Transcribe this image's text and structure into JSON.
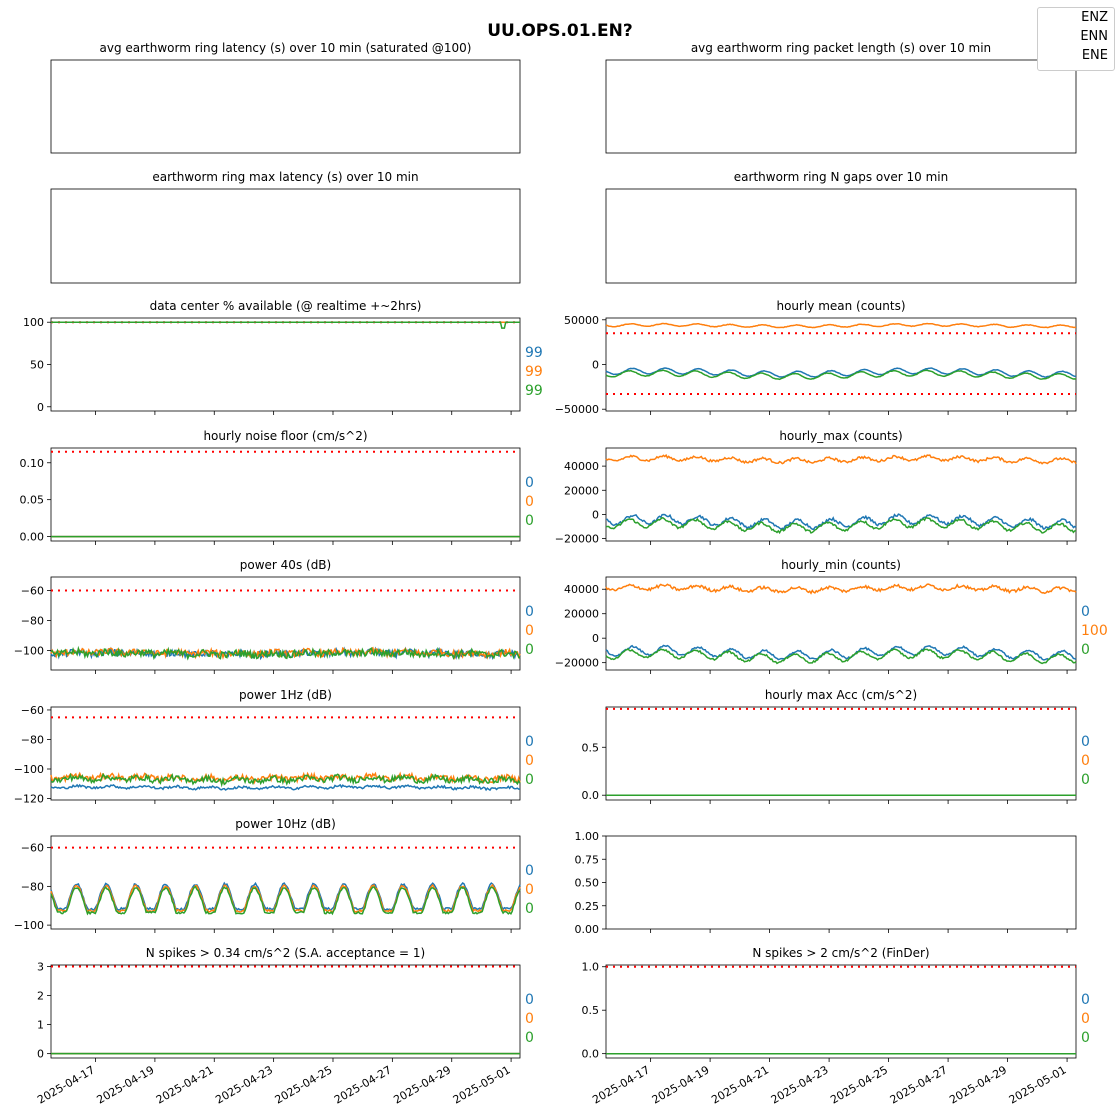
{
  "title": "UU.OPS.01.EN?",
  "legend": {
    "placement": "top-right",
    "entries": [
      "ENZ",
      "ENN",
      "ENE"
    ]
  },
  "colors": {
    "ENZ": "#1f77b4",
    "ENN": "#ff7f0e",
    "ENE": "#2ca02c",
    "threshold": "#ff0000"
  },
  "x_axis": {
    "type": "date",
    "range": [
      "2025-04-15",
      "2025-05-01"
    ],
    "tick_labels": [
      "2025-04-17",
      "2025-04-19",
      "2025-04-21",
      "2025-04-23",
      "2025-04-25",
      "2025-04-27",
      "2025-04-29",
      "2025-05-01"
    ]
  },
  "chart_data": [
    {
      "type": "line",
      "title": "avg earthworm ring latency (s)   over 10 min (saturated @100)",
      "empty": true,
      "ticks": [],
      "ylim": null,
      "stats": []
    },
    {
      "type": "line",
      "title": "avg earthworm ring packet length (s)   over 10 min",
      "empty": true,
      "ticks": [],
      "ylim": null,
      "stats": []
    },
    {
      "type": "line",
      "title": "earthworm ring max latency (s)   over 10 min",
      "empty": true,
      "ticks": [],
      "ylim": null,
      "stats": []
    },
    {
      "type": "line",
      "title": "earthworm ring N gaps   over 10 min",
      "empty": true,
      "ticks": [],
      "ylim": null,
      "stats": []
    },
    {
      "type": "line",
      "title": "data center % available (@ realtime +~2hrs)",
      "ylim": [
        -5,
        105
      ],
      "ticks": [
        {
          "v": 0,
          "label": "0"
        },
        {
          "v": 50,
          "label": "50"
        },
        {
          "v": 100,
          "label": "100"
        }
      ],
      "thresholds": [
        100
      ],
      "stats": [
        "99",
        "99",
        "99"
      ],
      "series": [
        {
          "channel": "ENZ",
          "base": 100
        },
        {
          "channel": "ENN",
          "base": 100
        },
        {
          "channel": "ENE",
          "base": 100,
          "dip": {
            "at": 0.965,
            "value": 93
          }
        }
      ]
    },
    {
      "type": "line",
      "title": "hourly mean (counts)",
      "ylim": [
        -52000,
        52000
      ],
      "ticks": [
        {
          "v": 50000,
          "label": "50000"
        },
        {
          "v": 0,
          "label": "0"
        },
        {
          "v": -50000,
          "label": "−50000"
        }
      ],
      "thresholds": [
        35000,
        -33000
      ],
      "stats": [],
      "series": [
        {
          "channel": "ENZ",
          "base": -9000,
          "amp": 4500,
          "noise": 300
        },
        {
          "channel": "ENN",
          "base": 43500,
          "amp": 2000,
          "noise": 300
        },
        {
          "channel": "ENE",
          "base": -11500,
          "amp": 4500,
          "noise": 300
        }
      ]
    },
    {
      "type": "line",
      "title": "hourly noise floor (cm/s^2)",
      "ylim": [
        -0.006,
        0.12
      ],
      "ticks": [
        {
          "v": 0.1,
          "label": "0.10"
        },
        {
          "v": 0.05,
          "label": "0.05"
        },
        {
          "v": 0,
          "label": "0.00"
        }
      ],
      "thresholds": [
        0.115
      ],
      "stats": [
        "0",
        "0",
        "0"
      ],
      "series": [
        {
          "channel": "ENZ",
          "base": 0
        },
        {
          "channel": "ENN",
          "base": 0
        },
        {
          "channel": "ENE",
          "base": 0
        }
      ]
    },
    {
      "type": "line",
      "title": "hourly_max (counts)",
      "ylim": [
        -22000,
        55000
      ],
      "ticks": [
        {
          "v": 40000,
          "label": "40000"
        },
        {
          "v": 20000,
          "label": "20000"
        },
        {
          "v": 0,
          "label": "0"
        },
        {
          "v": -20000,
          "label": "−20000"
        }
      ],
      "thresholds": [],
      "stats": [],
      "series": [
        {
          "channel": "ENZ",
          "base": -6000,
          "amp": 5000,
          "noise": 1200
        },
        {
          "channel": "ENN",
          "base": 45500,
          "amp": 2500,
          "noise": 1000
        },
        {
          "channel": "ENE",
          "base": -9000,
          "amp": 5000,
          "noise": 1000
        }
      ]
    },
    {
      "type": "line",
      "title": "power 40s (dB)",
      "ylim": [
        -113,
        -51
      ],
      "ticks": [
        {
          "v": -60,
          "label": "−60"
        },
        {
          "v": -80,
          "label": "−80"
        },
        {
          "v": -100,
          "label": "−100"
        }
      ],
      "thresholds": [
        -60
      ],
      "stats": [
        "0",
        "0",
        "0"
      ],
      "series": [
        {
          "channel": "ENZ",
          "base": -102,
          "amp": 1,
          "noise": 2.2
        },
        {
          "channel": "ENN",
          "base": -101.5,
          "amp": 1,
          "noise": 2.2
        },
        {
          "channel": "ENE",
          "base": -102,
          "amp": 1,
          "noise": 2.5
        }
      ]
    },
    {
      "type": "line",
      "title": "hourly_min (counts)",
      "ylim": [
        -26000,
        50000
      ],
      "ticks": [
        {
          "v": 40000,
          "label": "40000"
        },
        {
          "v": 20000,
          "label": "20000"
        },
        {
          "v": 0,
          "label": "0"
        },
        {
          "v": -20000,
          "label": "−20000"
        }
      ],
      "thresholds": [],
      "stats": [
        "0",
        "100",
        "0"
      ],
      "series": [
        {
          "channel": "ENZ",
          "base": -12000,
          "amp": 5000,
          "noise": 800
        },
        {
          "channel": "ENN",
          "base": 40500,
          "amp": 2500,
          "noise": 1200
        },
        {
          "channel": "ENE",
          "base": -14500,
          "amp": 5000,
          "noise": 800
        }
      ]
    },
    {
      "type": "line",
      "title": "power 1Hz (dB)",
      "ylim": [
        -121,
        -58
      ],
      "ticks": [
        {
          "v": -60,
          "label": "−60"
        },
        {
          "v": -80,
          "label": "−80"
        },
        {
          "v": -100,
          "label": "−100"
        },
        {
          "v": -120,
          "label": "−120"
        }
      ],
      "thresholds": [
        -65
      ],
      "stats": [
        "0",
        "0",
        "0"
      ],
      "series": [
        {
          "channel": "ENZ",
          "base": -112.5,
          "amp": 1,
          "noise": 0.8
        },
        {
          "channel": "ENN",
          "base": -106,
          "amp": 1.5,
          "noise": 2
        },
        {
          "channel": "ENE",
          "base": -107,
          "amp": 1.5,
          "noise": 2
        }
      ]
    },
    {
      "type": "line",
      "title": "hourly max Acc (cm/s^2)",
      "ylim": [
        -0.05,
        0.92
      ],
      "ticks": [
        {
          "v": 0.5,
          "label": "0.5"
        },
        {
          "v": 0,
          "label": "0.0"
        }
      ],
      "thresholds": [
        0.9
      ],
      "stats": [
        "0",
        "0",
        "0"
      ],
      "series": [
        {
          "channel": "ENZ",
          "base": 0
        },
        {
          "channel": "ENN",
          "base": 0
        },
        {
          "channel": "ENE",
          "base": 0
        }
      ]
    },
    {
      "type": "line",
      "title": "power 10Hz (dB)",
      "ylim": [
        -102,
        -54
      ],
      "ticks": [
        {
          "v": -60,
          "label": "−60"
        },
        {
          "v": -80,
          "label": "−80"
        },
        {
          "v": -100,
          "label": "−100"
        }
      ],
      "thresholds": [
        -60
      ],
      "stats": [
        "0",
        "0",
        "0"
      ],
      "series": [
        {
          "channel": "ENZ",
          "base": -86,
          "amp": 8,
          "noise": 0.6,
          "daily": true
        },
        {
          "channel": "ENN",
          "base": -87,
          "amp": 8,
          "noise": 0.6,
          "daily": true
        },
        {
          "channel": "ENE",
          "base": -88,
          "amp": 8,
          "noise": 0.6,
          "daily": true
        }
      ]
    },
    {
      "type": "line",
      "title": "",
      "empty": true,
      "ylim": [
        0,
        1
      ],
      "ticks": [
        {
          "v": 1,
          "label": "1.00"
        },
        {
          "v": 0.75,
          "label": "0.75"
        },
        {
          "v": 0.5,
          "label": "0.50"
        },
        {
          "v": 0.25,
          "label": "0.25"
        },
        {
          "v": 0,
          "label": "0.00"
        }
      ],
      "stats": []
    },
    {
      "type": "line",
      "title": "N spikes > 0.34 cm/s^2 (S.A. acceptance = 1)",
      "ylim": [
        -0.15,
        3.05
      ],
      "ticks": [
        {
          "v": 3,
          "label": "3"
        },
        {
          "v": 2,
          "label": "2"
        },
        {
          "v": 1,
          "label": "1"
        },
        {
          "v": 0,
          "label": "0"
        }
      ],
      "thresholds": [
        3
      ],
      "stats": [
        "0",
        "0",
        "0"
      ],
      "series": [
        {
          "channel": "ENZ",
          "base": 0
        },
        {
          "channel": "ENN",
          "base": 0
        },
        {
          "channel": "ENE",
          "base": 0
        }
      ]
    },
    {
      "type": "line",
      "title": "N spikes > 2 cm/s^2 (FinDer)",
      "ylim": [
        -0.05,
        1.02
      ],
      "ticks": [
        {
          "v": 1,
          "label": "1.0"
        },
        {
          "v": 0.5,
          "label": "0.5"
        },
        {
          "v": 0,
          "label": "0.0"
        }
      ],
      "thresholds": [
        1
      ],
      "stats": [
        "0",
        "0",
        "0"
      ],
      "series": [
        {
          "channel": "ENZ",
          "base": 0
        },
        {
          "channel": "ENN",
          "base": 0
        },
        {
          "channel": "ENE",
          "base": 0
        }
      ]
    }
  ]
}
